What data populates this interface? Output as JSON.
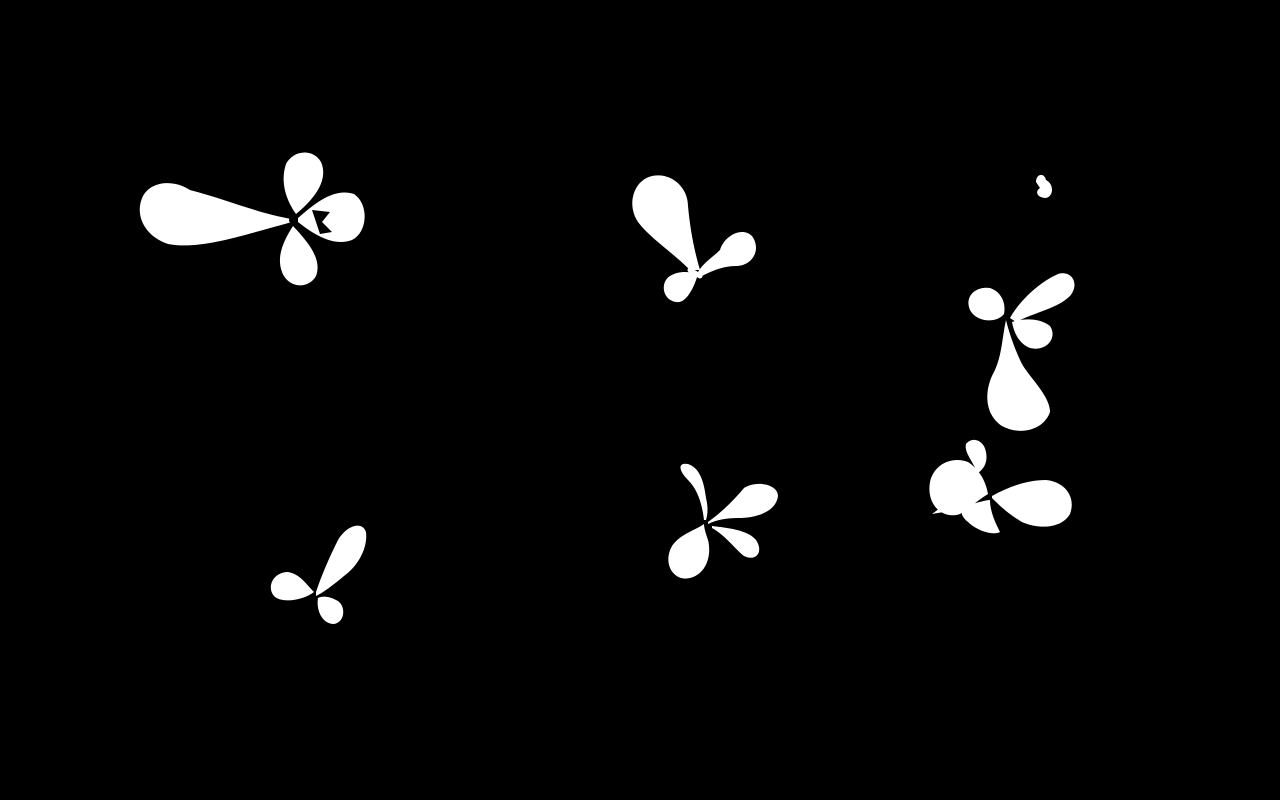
{
  "image": {
    "kind": "binary segmentation mask",
    "background_color": "#000000",
    "foreground_color": "#ffffff",
    "object_type": "plant seedling rosette",
    "object_count": 7
  }
}
